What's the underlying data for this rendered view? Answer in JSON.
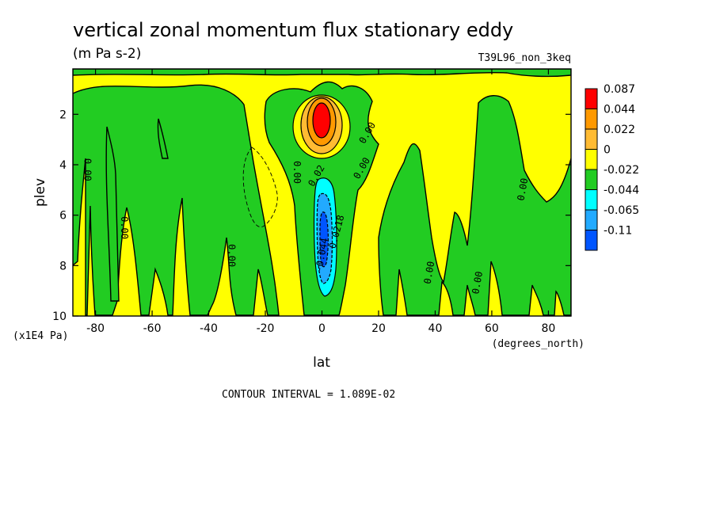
{
  "chart_data": {
    "type": "heatmap",
    "title": "vertical zonal momentum flux stationary eddy",
    "units": "(m Pa s-2)",
    "dataset": "T39L96_non_3keq",
    "xlabel": "lat",
    "xunits": "(degrees_north)",
    "ylabel": "plev",
    "yunits": "(x1E4 Pa)",
    "xlim": [
      -88,
      88
    ],
    "ylim": [
      10,
      0.2
    ],
    "x_ticks": [
      -80,
      -60,
      -40,
      -20,
      0,
      20,
      40,
      60,
      80
    ],
    "x_tick_labels": [
      "-80",
      "-60",
      "-40",
      "-20",
      "0",
      "20",
      "40",
      "60",
      "80"
    ],
    "y_ticks": [
      2,
      4,
      6,
      8,
      10
    ],
    "y_tick_labels": [
      "2",
      "4",
      "6",
      "8",
      "10"
    ],
    "contour_interval": "CONTOUR INTERVAL = 1.089E-02",
    "legend": {
      "position": "right",
      "levels": [
        "0.087",
        "0.044",
        "0.022",
        "0",
        "-0.022",
        "-0.044",
        "-0.065",
        "-0.11"
      ],
      "colors": [
        "#ff0000",
        "#ff9900",
        "#ffbb33",
        "#ffff00",
        "#22cc22",
        "#00ffff",
        "#22aaff",
        "#0055ff"
      ]
    },
    "contour_labels": [
      {
        "text": "0.00",
        "lat": -84,
        "p": 4.2,
        "angle": 90
      },
      {
        "text": "0.00",
        "lat": -71,
        "p": 6.5,
        "angle": 90
      },
      {
        "text": "0.00",
        "lat": -33,
        "p": 7.6,
        "angle": 90
      },
      {
        "text": "0.00",
        "lat": -10,
        "p": 4.3,
        "angle": 90
      },
      {
        "text": "0.00",
        "lat": 17,
        "p": 2.8,
        "angle": -60
      },
      {
        "text": "0.00",
        "lat": 15,
        "p": 4.2,
        "angle": -60
      },
      {
        "text": "0.02",
        "lat": -1,
        "p": 4.5,
        "angle": -60
      },
      {
        "text": "-0.0218",
        "lat": 6,
        "p": 6.8,
        "angle": -75
      },
      {
        "text": "-0.044",
        "lat": 1,
        "p": 7.6,
        "angle": -80
      },
      {
        "text": "0.00",
        "lat": 39,
        "p": 8.3,
        "angle": -80
      },
      {
        "text": "0.00",
        "lat": 56,
        "p": 8.7,
        "angle": -80
      },
      {
        "text": "0.00",
        "lat": 72,
        "p": 5.0,
        "angle": -80
      }
    ],
    "features": [
      {
        "name": "positive-maximum",
        "lat": 0,
        "p": 2.2,
        "value": 0.087
      },
      {
        "name": "negative-minimum",
        "lat": 1,
        "p": 7.0,
        "value": -0.11
      }
    ]
  },
  "colors": {
    "positive_fill": "#ffff00",
    "negative_fill": "#22cc22"
  }
}
